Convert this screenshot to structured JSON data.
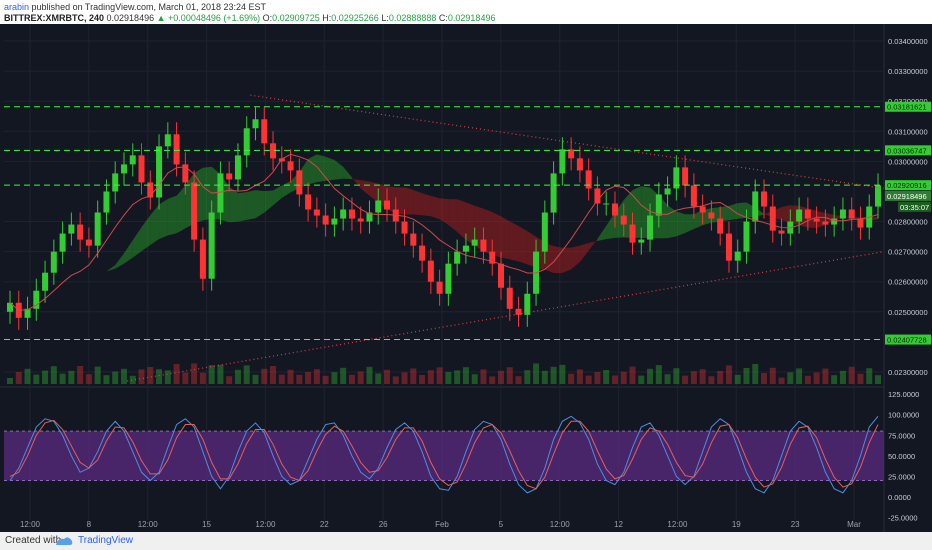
{
  "header": {
    "author": "arabin",
    "published_text": "published on TradingView.com, March 01, 2018 23:24 EST",
    "symbol": "BITTREX:XMRBTC, 240",
    "last": "0.02918496",
    "change": "+0.00048496 (+1.69%)",
    "o_label": "O:",
    "o": "0.02909725",
    "h_label": "H:",
    "h": "0.02925266",
    "l_label": "L:",
    "l": "0.02888888",
    "c_label": "C:",
    "c": "0.02918496"
  },
  "footer": {
    "created_with": "Created with",
    "brand": "TradingView"
  },
  "chart_data": [
    {
      "type": "candlestick",
      "title": "BITTREX:XMRBTC, 240",
      "x_tick_labels": [
        "12:00",
        "8",
        "12:00",
        "15",
        "12:00",
        "22",
        "26",
        "Feb",
        "5",
        "12:00",
        "12",
        "12:00",
        "19",
        "23",
        "Mar"
      ],
      "y_tick_labels": [
        "0.03400000",
        "0.03300000",
        "0.03200000",
        "0.03100000",
        "0.03000000",
        "0.02800000",
        "0.02700000",
        "0.02600000",
        "0.02500000",
        "0.02300000"
      ],
      "ylim": [
        0.0226,
        0.0345
      ],
      "price_close": [
        0.0253,
        0.0248,
        0.0251,
        0.0257,
        0.0263,
        0.027,
        0.0276,
        0.0279,
        0.0274,
        0.0272,
        0.0283,
        0.029,
        0.0296,
        0.0299,
        0.0302,
        0.0293,
        0.0288,
        0.0305,
        0.0309,
        0.0299,
        0.0293,
        0.0274,
        0.0261,
        0.0283,
        0.0296,
        0.0294,
        0.0302,
        0.0311,
        0.0314,
        0.0306,
        0.0301,
        0.03,
        0.0297,
        0.0289,
        0.0284,
        0.0282,
        0.0279,
        0.0281,
        0.0284,
        0.0281,
        0.028,
        0.0283,
        0.0287,
        0.0284,
        0.028,
        0.0276,
        0.0272,
        0.0267,
        0.026,
        0.0256,
        0.0266,
        0.027,
        0.0272,
        0.0274,
        0.027,
        0.0266,
        0.0258,
        0.0251,
        0.0249,
        0.0256,
        0.027,
        0.0283,
        0.0296,
        0.0304,
        0.0301,
        0.0297,
        0.0291,
        0.0286,
        0.0286,
        0.0282,
        0.0279,
        0.0273,
        0.0274,
        0.0282,
        0.0289,
        0.0291,
        0.0298,
        0.0292,
        0.0285,
        0.0283,
        0.0281,
        0.0276,
        0.0267,
        0.027,
        0.028,
        0.029,
        0.0285,
        0.0277,
        0.0276,
        0.028,
        0.0284,
        0.0281,
        0.028,
        0.0279,
        0.0281,
        0.0284,
        0.0281,
        0.0278,
        0.0285,
        0.0292
      ],
      "horizontal_levels": [
        {
          "value": 0.03181621,
          "label": "0.03181621"
        },
        {
          "value": 0.03036747,
          "label": "0.03036747"
        },
        {
          "value": 0.02920916,
          "label": "0.02920916"
        },
        {
          "value": 0.02407728,
          "label": "0.02407728"
        }
      ],
      "current_price_label": "0.02918496",
      "countdown_label": "03:35:07",
      "trendlines": [
        {
          "from": [
            0.14,
            0.0227
          ],
          "to": [
            1.0,
            0.027
          ],
          "style": "dotted"
        },
        {
          "from": [
            0.28,
            0.0322
          ],
          "to": [
            1.0,
            0.0291
          ],
          "style": "dotted"
        }
      ],
      "indicators": [
        "Ichimoku cloud",
        "moving average",
        "volume"
      ],
      "colors": {
        "background": "#131722",
        "level": "#33ff33",
        "label_bg": "#33cc33",
        "bull": "#33cc33",
        "bear": "#ff3333",
        "trend": "#e04040"
      }
    },
    {
      "type": "line",
      "title": "Stochastic RSI",
      "y_tick_labels": [
        "125.0000",
        "100.0000",
        "75.0000",
        "50.0000",
        "25.0000",
        "0.0000",
        "-25.0000"
      ],
      "ylim": [
        -28,
        130
      ],
      "band": [
        20,
        80
      ],
      "series": [
        {
          "values": [
            20,
            35,
            60,
            85,
            95,
            92,
            75,
            50,
            30,
            35,
            55,
            80,
            92,
            80,
            55,
            30,
            20,
            30,
            60,
            88,
            95,
            85,
            55,
            25,
            10,
            25,
            55,
            80,
            90,
            78,
            50,
            25,
            15,
            20,
            45,
            70,
            88,
            90,
            75,
            50,
            30,
            22,
            35,
            60,
            82,
            90,
            80,
            55,
            25,
            10,
            8,
            25,
            55,
            82,
            92,
            88,
            70,
            40,
            15,
            5,
            10,
            35,
            70,
            92,
            98,
            90,
            70,
            40,
            20,
            15,
            30,
            60,
            85,
            90,
            75,
            50,
            25,
            15,
            25,
            55,
            85,
            95,
            88,
            60,
            30,
            10,
            5,
            20,
            50,
            80,
            92,
            85,
            60,
            30,
            10,
            5,
            20,
            50,
            85,
            98
          ]
        },
        {
          "values": [
            25,
            30,
            50,
            75,
            90,
            93,
            82,
            62,
            42,
            35,
            45,
            68,
            85,
            84,
            67,
            44,
            28,
            28,
            45,
            72,
            88,
            88,
            70,
            42,
            22,
            22,
            40,
            65,
            82,
            82,
            64,
            40,
            24,
            20,
            32,
            56,
            76,
            86,
            80,
            62,
            42,
            30,
            32,
            48,
            70,
            84,
            84,
            68,
            42,
            22,
            14,
            18,
            40,
            66,
            84,
            88,
            78,
            56,
            32,
            14,
            10,
            24,
            52,
            78,
            92,
            92,
            80,
            56,
            34,
            22,
            26,
            46,
            70,
            84,
            80,
            64,
            42,
            26,
            24,
            40,
            66,
            86,
            88,
            72,
            46,
            24,
            12,
            16,
            36,
            64,
            84,
            86,
            72,
            46,
            24,
            12,
            16,
            36,
            66,
            88
          ]
        }
      ],
      "colors": {
        "k": "#4a8fe0",
        "d": "#e06060",
        "band": "#5b2a82"
      }
    }
  ]
}
